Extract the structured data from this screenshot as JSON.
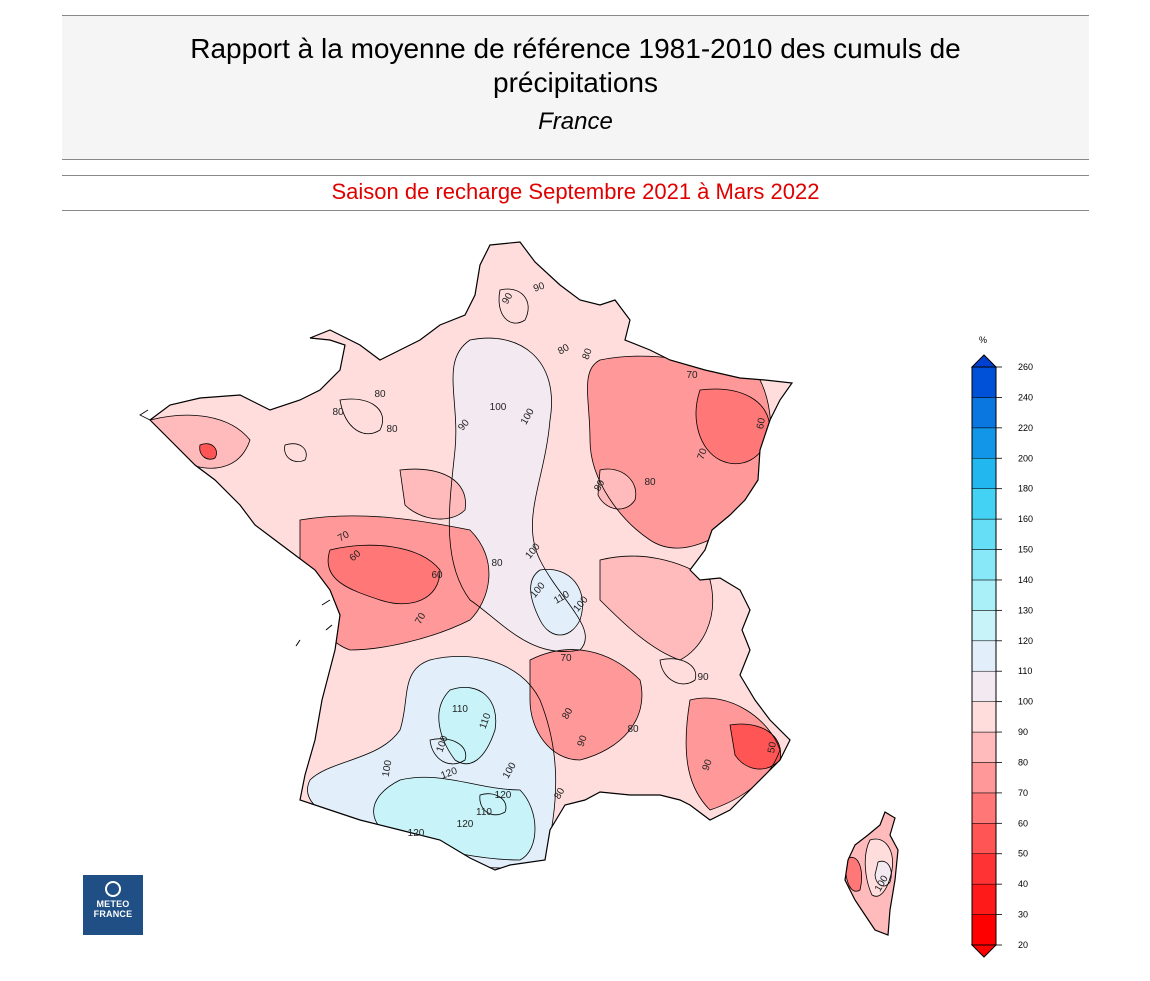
{
  "header": {
    "title_line1": "Rapport à la moyenne de référence 1981-2010 des cumuls de",
    "title_line2": "précipitations",
    "region": "France"
  },
  "season_label": "Saison de recharge  Septembre 2021 à Mars 2022",
  "legend": {
    "unit": "%",
    "levels": [
      20,
      30,
      40,
      50,
      60,
      70,
      80,
      90,
      100,
      110,
      120,
      130,
      140,
      150,
      160,
      180,
      200,
      220,
      240,
      260
    ],
    "colors": [
      "#ff0000",
      "#ff1a1a",
      "#ff3333",
      "#ff5555",
      "#ff7777",
      "#ff9999",
      "#ffbbbb",
      "#ffdddd",
      "#f3eaf1",
      "#e2eefa",
      "#c8f3f8",
      "#aaf0f8",
      "#88e8f8",
      "#66def6",
      "#44d2f4",
      "#22b8ef",
      "#1296e8",
      "#0a76e0",
      "#0050d8"
    ],
    "under_color": "#ff0000",
    "over_color": "#0040d0"
  },
  "contour_labels": [
    {
      "text": "90"
    },
    {
      "text": "90"
    },
    {
      "text": "80"
    },
    {
      "text": "80"
    },
    {
      "text": "70"
    },
    {
      "text": "60"
    },
    {
      "text": "70"
    },
    {
      "text": "80"
    },
    {
      "text": "80"
    },
    {
      "text": "80"
    },
    {
      "text": "100"
    },
    {
      "text": "100"
    },
    {
      "text": "90"
    },
    {
      "text": "80"
    },
    {
      "text": "80"
    },
    {
      "text": "70"
    },
    {
      "text": "60"
    },
    {
      "text": "60"
    },
    {
      "text": "70"
    },
    {
      "text": "80"
    },
    {
      "text": "100"
    },
    {
      "text": "100"
    },
    {
      "text": "110"
    },
    {
      "text": "100"
    },
    {
      "text": "70"
    },
    {
      "text": "80"
    },
    {
      "text": "90"
    },
    {
      "text": "80"
    },
    {
      "text": "90"
    },
    {
      "text": "110"
    },
    {
      "text": "110"
    },
    {
      "text": "100"
    },
    {
      "text": "100"
    },
    {
      "text": "120"
    },
    {
      "text": "120"
    },
    {
      "text": "110"
    },
    {
      "text": "120"
    },
    {
      "text": "120"
    },
    {
      "text": "100"
    },
    {
      "text": "80"
    },
    {
      "text": "90"
    },
    {
      "text": "50"
    },
    {
      "text": "100"
    }
  ],
  "logo": {
    "line1": "METEO",
    "line2": "FRANCE"
  }
}
